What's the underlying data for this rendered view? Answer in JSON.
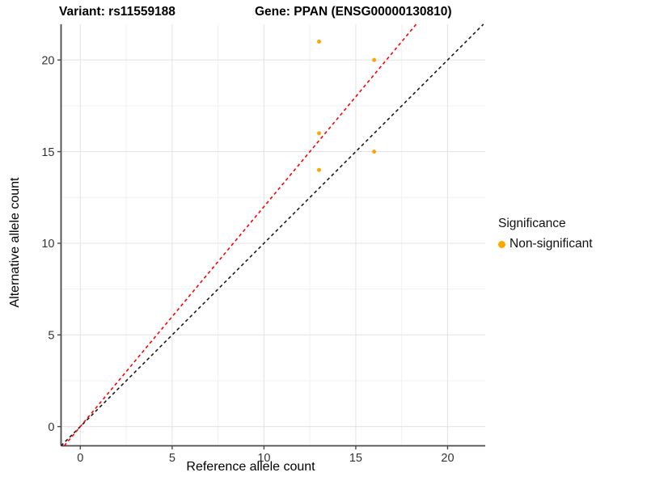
{
  "titles": {
    "variant": "Variant: rs11559188",
    "gene": "Gene: PPAN (ENSG00000130810)"
  },
  "legend": {
    "title": "Significance",
    "items": [
      {
        "label": "Non-significant",
        "color": "#FFA500"
      }
    ]
  },
  "colors": {
    "point": "#FFA500",
    "grid_major": "#E5E5E5",
    "grid_minor": "#F1F1F1",
    "axis_line": "#4A4A4A",
    "tick_label": "#333333",
    "identity_line": "#1A1A1A",
    "ratio_line": "#FF0000"
  },
  "chart_data": {
    "type": "scatter",
    "variant_title": "Variant: rs11559188",
    "gene_title": "Gene: PPAN (ENSG00000130810)",
    "xlabel": "Reference allele count",
    "ylabel": "Alternative allele count",
    "xlim": [
      -1.05,
      22.05
    ],
    "ylim": [
      -1.05,
      21.95
    ],
    "x_ticks": [
      0,
      5,
      10,
      15,
      20
    ],
    "y_ticks": [
      0,
      5,
      10,
      15,
      20
    ],
    "x_minor_ticks": [
      2.5,
      7.5,
      12.5,
      17.5
    ],
    "y_minor_ticks": [
      2.5,
      7.5,
      12.5,
      17.5
    ],
    "grid": true,
    "legend_position": "right",
    "series": [
      {
        "name": "Non-significant",
        "color": "#FFA500",
        "points": [
          {
            "x": 13,
            "y": 21
          },
          {
            "x": 16,
            "y": 20
          },
          {
            "x": 13,
            "y": 16
          },
          {
            "x": 16,
            "y": 15
          },
          {
            "x": 13,
            "y": 14
          }
        ]
      }
    ],
    "lines": [
      {
        "name": "identity",
        "slope": 1.0,
        "intercept": 0,
        "style": "dashed",
        "color": "#1A1A1A"
      },
      {
        "name": "expected-ratio",
        "slope": 1.2,
        "intercept": 0,
        "style": "dashed",
        "color": "#FF0000"
      }
    ]
  }
}
